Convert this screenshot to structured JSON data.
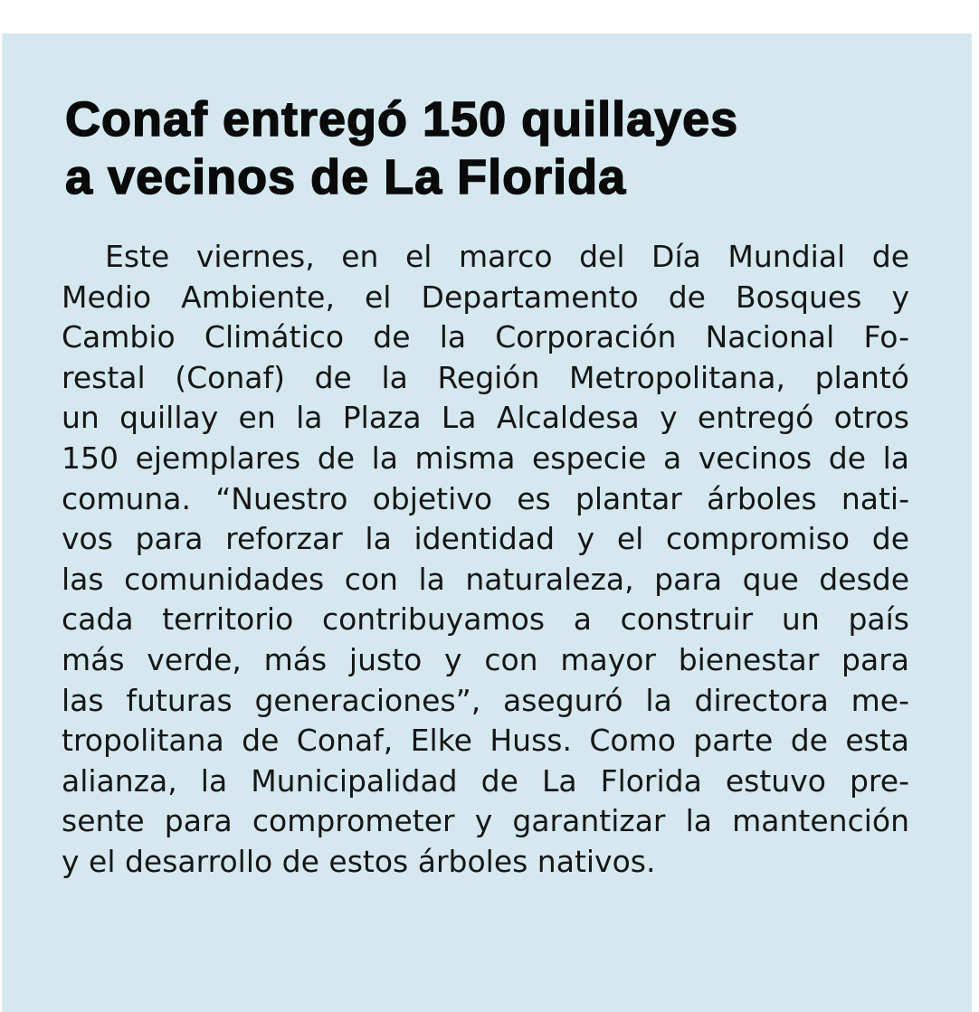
{
  "article": {
    "headline_lines": [
      "Conaf entregó 150 quillayes",
      "a vecinos de La Florida"
    ],
    "body_lines": [
      "Este viernes, en el marco del Día Mundial de",
      "Medio Ambiente, el Departamento de Bosques y",
      "Cambio Climático de la Corporación Nacional Fo-",
      "restal (Conaf) de la Región Metropolitana, plantó",
      "un quillay en la Plaza La Alcaldesa y entregó otros",
      "150 ejemplares de la misma especie a vecinos de la",
      "comuna. “Nuestro objetivo es plantar árboles nati-",
      "vos para reforzar la identidad y el compromiso de",
      "las comunidades con la naturaleza, para que desde",
      "cada territorio contribuyamos a construir un país",
      "más verde, más justo y con mayor bienestar para",
      "las futuras generaciones”, aseguró la directora me-",
      "tropolitana de Conaf, Elke Huss. Como parte de esta",
      "alianza, la Municipalidad de La Florida estuvo pre-",
      "sente para comprometer y garantizar la mantención",
      "y el desarrollo de estos árboles nativos."
    ]
  },
  "colors": {
    "background": "#d5e8ef",
    "text": "#161616"
  }
}
